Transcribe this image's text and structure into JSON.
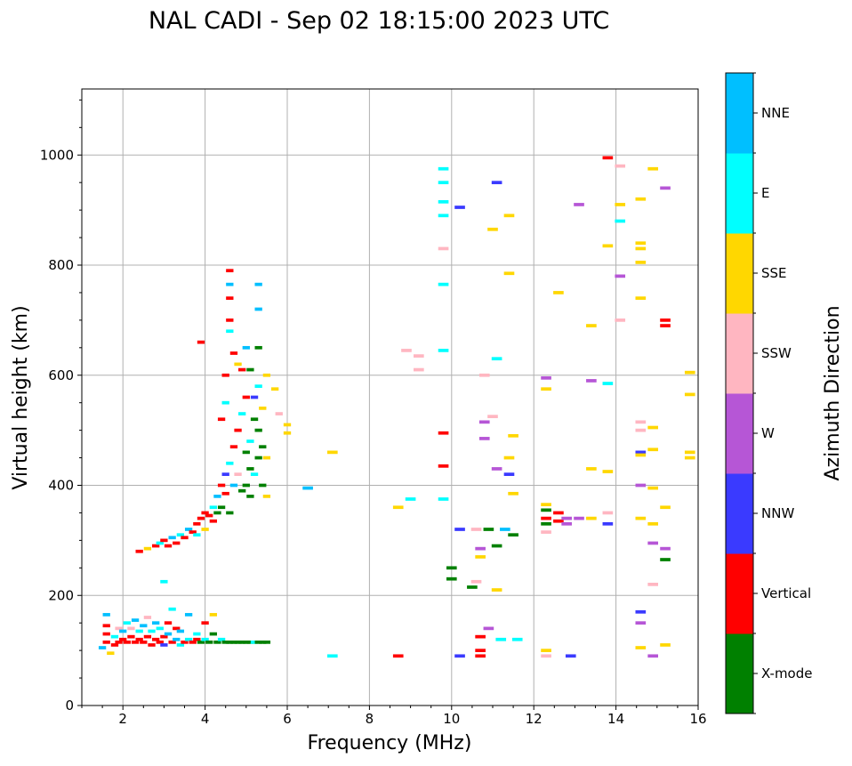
{
  "chart_data": {
    "type": "scatter",
    "title": "NAL CADI - Sep 02 18:15:00 2023 UTC",
    "xlabel": "Frequency (MHz)",
    "ylabel": "Virtual height (km)",
    "xlim": [
      1,
      16
    ],
    "ylim": [
      0,
      1120
    ],
    "xticks": [
      2,
      4,
      6,
      8,
      10,
      12,
      14,
      16
    ],
    "yticks": [
      0,
      200,
      400,
      600,
      800,
      1000
    ],
    "grid": true,
    "colorbar": {
      "label": "Azimuth Direction",
      "categories": [
        "X-mode",
        "Vertical",
        "NNW",
        "W",
        "SSW",
        "SSE",
        "E",
        "NNE"
      ],
      "colors": [
        "#008000",
        "#ff0000",
        "#3a3aff",
        "#b656d6",
        "#ffb6c1",
        "#ffd700",
        "#00ffff",
        "#00bfff"
      ]
    },
    "point_format": [
      "frequency_MHz",
      "height_km",
      "category_index"
    ],
    "points": [
      [
        1.5,
        105,
        7
      ],
      [
        1.6,
        115,
        1
      ],
      [
        1.6,
        130,
        1
      ],
      [
        1.6,
        145,
        1
      ],
      [
        1.6,
        165,
        7
      ],
      [
        1.7,
        95,
        5
      ],
      [
        1.8,
        110,
        1
      ],
      [
        1.8,
        125,
        6
      ],
      [
        1.9,
        140,
        4
      ],
      [
        1.9,
        115,
        1
      ],
      [
        2.0,
        120,
        1
      ],
      [
        2.0,
        135,
        7
      ],
      [
        2.1,
        150,
        6
      ],
      [
        2.1,
        115,
        1
      ],
      [
        2.2,
        125,
        1
      ],
      [
        2.2,
        140,
        4
      ],
      [
        2.3,
        155,
        7
      ],
      [
        2.3,
        115,
        1
      ],
      [
        2.4,
        120,
        1
      ],
      [
        2.4,
        135,
        6
      ],
      [
        2.5,
        145,
        7
      ],
      [
        2.5,
        115,
        1
      ],
      [
        2.6,
        125,
        1
      ],
      [
        2.6,
        160,
        4
      ],
      [
        2.7,
        110,
        1
      ],
      [
        2.7,
        135,
        6
      ],
      [
        2.8,
        120,
        1
      ],
      [
        2.8,
        150,
        7
      ],
      [
        2.9,
        115,
        1
      ],
      [
        2.9,
        140,
        6
      ],
      [
        3.0,
        125,
        1
      ],
      [
        3.0,
        110,
        2
      ],
      [
        3.1,
        130,
        7
      ],
      [
        3.1,
        150,
        1
      ],
      [
        3.2,
        115,
        1
      ],
      [
        3.2,
        175,
        6
      ],
      [
        3.3,
        120,
        7
      ],
      [
        3.3,
        140,
        1
      ],
      [
        3.4,
        110,
        6
      ],
      [
        3.4,
        135,
        7
      ],
      [
        3.5,
        115,
        1
      ],
      [
        3.6,
        120,
        6
      ],
      [
        3.6,
        165,
        7
      ],
      [
        3.7,
        115,
        1
      ],
      [
        3.8,
        120,
        1
      ],
      [
        3.8,
        130,
        6
      ],
      [
        3.9,
        115,
        0
      ],
      [
        4.0,
        120,
        6
      ],
      [
        4.0,
        150,
        1
      ],
      [
        4.1,
        115,
        0
      ],
      [
        4.2,
        130,
        0
      ],
      [
        4.2,
        165,
        5
      ],
      [
        4.3,
        115,
        0
      ],
      [
        4.4,
        120,
        6
      ],
      [
        4.5,
        115,
        0
      ],
      [
        4.6,
        115,
        0
      ],
      [
        4.7,
        115,
        0
      ],
      [
        4.8,
        115,
        0
      ],
      [
        4.9,
        115,
        0
      ],
      [
        5.0,
        115,
        0
      ],
      [
        5.1,
        115,
        0
      ],
      [
        5.2,
        115,
        6
      ],
      [
        5.3,
        115,
        0
      ],
      [
        5.4,
        115,
        0
      ],
      [
        5.5,
        115,
        0
      ],
      [
        3.0,
        225,
        6
      ],
      [
        2.4,
        280,
        1
      ],
      [
        2.6,
        285,
        5
      ],
      [
        2.8,
        290,
        1
      ],
      [
        2.9,
        295,
        6
      ],
      [
        3.0,
        300,
        1
      ],
      [
        3.1,
        290,
        1
      ],
      [
        3.2,
        305,
        7
      ],
      [
        3.3,
        295,
        1
      ],
      [
        3.4,
        310,
        6
      ],
      [
        3.5,
        305,
        1
      ],
      [
        3.6,
        320,
        7
      ],
      [
        3.7,
        315,
        1
      ],
      [
        3.8,
        330,
        1
      ],
      [
        3.8,
        310,
        6
      ],
      [
        3.9,
        340,
        1
      ],
      [
        4.0,
        350,
        1
      ],
      [
        4.0,
        320,
        5
      ],
      [
        4.1,
        345,
        1
      ],
      [
        4.2,
        360,
        6
      ],
      [
        4.2,
        335,
        1
      ],
      [
        4.3,
        380,
        7
      ],
      [
        4.3,
        350,
        0
      ],
      [
        4.4,
        400,
        1
      ],
      [
        4.4,
        360,
        0
      ],
      [
        4.5,
        420,
        2
      ],
      [
        4.5,
        385,
        1
      ],
      [
        4.6,
        440,
        6
      ],
      [
        4.6,
        350,
        0
      ],
      [
        4.7,
        470,
        1
      ],
      [
        4.7,
        400,
        7
      ],
      [
        4.8,
        500,
        1
      ],
      [
        4.8,
        420,
        4
      ],
      [
        4.9,
        530,
        6
      ],
      [
        4.9,
        390,
        0
      ],
      [
        5.0,
        560,
        1
      ],
      [
        5.0,
        460,
        0
      ],
      [
        5.0,
        400,
        0
      ],
      [
        5.1,
        480,
        6
      ],
      [
        5.1,
        430,
        0
      ],
      [
        5.1,
        380,
        0
      ],
      [
        5.2,
        520,
        0
      ],
      [
        5.2,
        420,
        6
      ],
      [
        5.3,
        580,
        6
      ],
      [
        5.3,
        500,
        0
      ],
      [
        5.3,
        450,
        0
      ],
      [
        5.4,
        540,
        5
      ],
      [
        5.4,
        470,
        0
      ],
      [
        5.4,
        400,
        0
      ],
      [
        5.5,
        600,
        5
      ],
      [
        5.5,
        450,
        5
      ],
      [
        5.5,
        380,
        5
      ],
      [
        5.3,
        650,
        0
      ],
      [
        5.3,
        720,
        7
      ],
      [
        5.3,
        765,
        7
      ],
      [
        4.6,
        790,
        1
      ],
      [
        4.6,
        765,
        7
      ],
      [
        4.6,
        740,
        1
      ],
      [
        4.6,
        700,
        1
      ],
      [
        4.6,
        680,
        6
      ],
      [
        4.7,
        640,
        1
      ],
      [
        4.8,
        620,
        5
      ],
      [
        4.9,
        610,
        1
      ],
      [
        5.1,
        610,
        0
      ],
      [
        3.9,
        660,
        1
      ],
      [
        4.5,
        600,
        1
      ],
      [
        4.5,
        550,
        6
      ],
      [
        4.4,
        520,
        1
      ],
      [
        5.0,
        650,
        7
      ],
      [
        5.2,
        560,
        2
      ],
      [
        5.7,
        575,
        5
      ],
      [
        5.8,
        530,
        4
      ],
      [
        6.0,
        510,
        5
      ],
      [
        6.0,
        495,
        5
      ],
      [
        6.5,
        395,
        7
      ],
      [
        7.1,
        460,
        5
      ],
      [
        7.1,
        90,
        6
      ],
      [
        8.7,
        90,
        1
      ],
      [
        8.7,
        360,
        5
      ],
      [
        8.9,
        645,
        4
      ],
      [
        9.0,
        375,
        6
      ],
      [
        9.2,
        635,
        4
      ],
      [
        9.2,
        610,
        4
      ],
      [
        9.8,
        975,
        6
      ],
      [
        9.8,
        950,
        6
      ],
      [
        9.8,
        915,
        6
      ],
      [
        9.8,
        890,
        6
      ],
      [
        9.8,
        830,
        4
      ],
      [
        9.8,
        765,
        6
      ],
      [
        9.8,
        645,
        6
      ],
      [
        9.8,
        495,
        1
      ],
      [
        9.8,
        435,
        1
      ],
      [
        9.8,
        375,
        6
      ],
      [
        10.0,
        250,
        0
      ],
      [
        10.0,
        230,
        0
      ],
      [
        10.2,
        905,
        2
      ],
      [
        10.2,
        320,
        2
      ],
      [
        10.2,
        90,
        2
      ],
      [
        10.5,
        215,
        0
      ],
      [
        10.6,
        225,
        4
      ],
      [
        10.6,
        320,
        4
      ],
      [
        10.7,
        285,
        3
      ],
      [
        10.7,
        270,
        5
      ],
      [
        10.7,
        125,
        1
      ],
      [
        10.7,
        100,
        1
      ],
      [
        10.7,
        90,
        1
      ],
      [
        10.8,
        600,
        4
      ],
      [
        10.8,
        515,
        3
      ],
      [
        10.8,
        485,
        3
      ],
      [
        10.9,
        320,
        0
      ],
      [
        10.9,
        140,
        3
      ],
      [
        11.0,
        865,
        5
      ],
      [
        11.0,
        525,
        4
      ],
      [
        11.1,
        950,
        2
      ],
      [
        11.1,
        630,
        6
      ],
      [
        11.1,
        430,
        3
      ],
      [
        11.1,
        290,
        0
      ],
      [
        11.1,
        210,
        5
      ],
      [
        11.2,
        120,
        6
      ],
      [
        11.3,
        320,
        7
      ],
      [
        11.4,
        890,
        5
      ],
      [
        11.4,
        785,
        5
      ],
      [
        11.4,
        450,
        5
      ],
      [
        11.4,
        420,
        2
      ],
      [
        11.5,
        490,
        5
      ],
      [
        11.5,
        385,
        5
      ],
      [
        11.5,
        310,
        0
      ],
      [
        11.6,
        120,
        6
      ],
      [
        12.3,
        595,
        3
      ],
      [
        12.3,
        575,
        5
      ],
      [
        12.3,
        365,
        5
      ],
      [
        12.3,
        355,
        0
      ],
      [
        12.3,
        340,
        1
      ],
      [
        12.3,
        330,
        0
      ],
      [
        12.3,
        315,
        4
      ],
      [
        12.3,
        100,
        5
      ],
      [
        12.3,
        90,
        4
      ],
      [
        12.6,
        750,
        5
      ],
      [
        12.6,
        350,
        1
      ],
      [
        12.6,
        335,
        1
      ],
      [
        12.8,
        340,
        3
      ],
      [
        12.8,
        330,
        3
      ],
      [
        12.9,
        90,
        2
      ],
      [
        13.1,
        910,
        3
      ],
      [
        13.1,
        340,
        3
      ],
      [
        13.4,
        690,
        5
      ],
      [
        13.4,
        590,
        3
      ],
      [
        13.4,
        430,
        5
      ],
      [
        13.4,
        340,
        5
      ],
      [
        13.8,
        995,
        1
      ],
      [
        13.8,
        835,
        5
      ],
      [
        13.8,
        585,
        6
      ],
      [
        13.8,
        425,
        5
      ],
      [
        13.8,
        350,
        4
      ],
      [
        13.8,
        330,
        2
      ],
      [
        14.1,
        980,
        4
      ],
      [
        14.1,
        910,
        5
      ],
      [
        14.1,
        880,
        6
      ],
      [
        14.1,
        780,
        3
      ],
      [
        14.1,
        700,
        4
      ],
      [
        14.6,
        920,
        5
      ],
      [
        14.6,
        840,
        5
      ],
      [
        14.6,
        830,
        5
      ],
      [
        14.6,
        805,
        5
      ],
      [
        14.6,
        740,
        5
      ],
      [
        14.6,
        515,
        4
      ],
      [
        14.6,
        500,
        4
      ],
      [
        14.6,
        460,
        2
      ],
      [
        14.6,
        455,
        5
      ],
      [
        14.6,
        400,
        3
      ],
      [
        14.6,
        340,
        5
      ],
      [
        14.6,
        170,
        2
      ],
      [
        14.6,
        150,
        3
      ],
      [
        14.6,
        105,
        5
      ],
      [
        14.9,
        975,
        5
      ],
      [
        14.9,
        505,
        5
      ],
      [
        14.9,
        465,
        5
      ],
      [
        14.9,
        395,
        5
      ],
      [
        14.9,
        330,
        5
      ],
      [
        14.9,
        295,
        3
      ],
      [
        14.9,
        220,
        4
      ],
      [
        14.9,
        90,
        3
      ],
      [
        15.2,
        940,
        3
      ],
      [
        15.2,
        700,
        1
      ],
      [
        15.2,
        690,
        1
      ],
      [
        15.2,
        360,
        5
      ],
      [
        15.2,
        285,
        3
      ],
      [
        15.2,
        265,
        0
      ],
      [
        15.2,
        110,
        5
      ],
      [
        15.8,
        605,
        5
      ],
      [
        15.8,
        565,
        5
      ],
      [
        15.8,
        460,
        5
      ],
      [
        15.8,
        450,
        5
      ]
    ]
  }
}
